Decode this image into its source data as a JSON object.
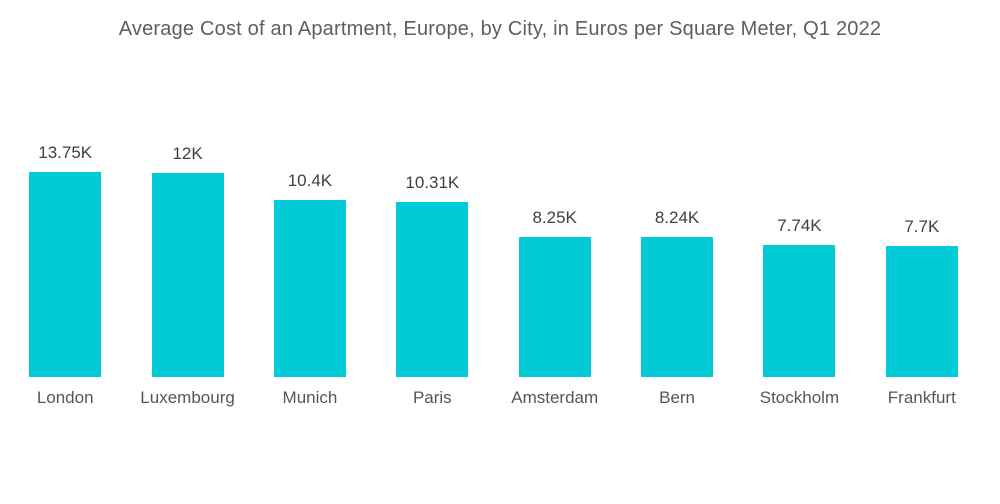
{
  "chart_data": {
    "type": "bar",
    "title": "Average Cost of an Apartment, Europe, by City, in Euros per Square Meter, Q1 2022",
    "categories": [
      "London",
      "Luxembourg",
      "Munich",
      "Paris",
      "Amsterdam",
      "Bern",
      "Stockholm",
      "Frankfurt"
    ],
    "values": [
      13750,
      12000,
      10400,
      10310,
      8250,
      8240,
      7740,
      7700
    ],
    "value_labels": [
      "13.75K",
      "12K",
      "10.4K",
      "10.31K",
      "8.25K",
      "8.24K",
      "7.74K",
      "7.7K"
    ],
    "xlabel": "",
    "ylabel": "",
    "ylim": [
      0,
      13750
    ],
    "grid": false,
    "legend": false,
    "axis_lines": false,
    "bar_color": "#00CBD6",
    "title_color": "#5d5e60",
    "value_label_color": "#414042",
    "category_label_color": "#55565a",
    "background_color": "#ffffff"
  }
}
